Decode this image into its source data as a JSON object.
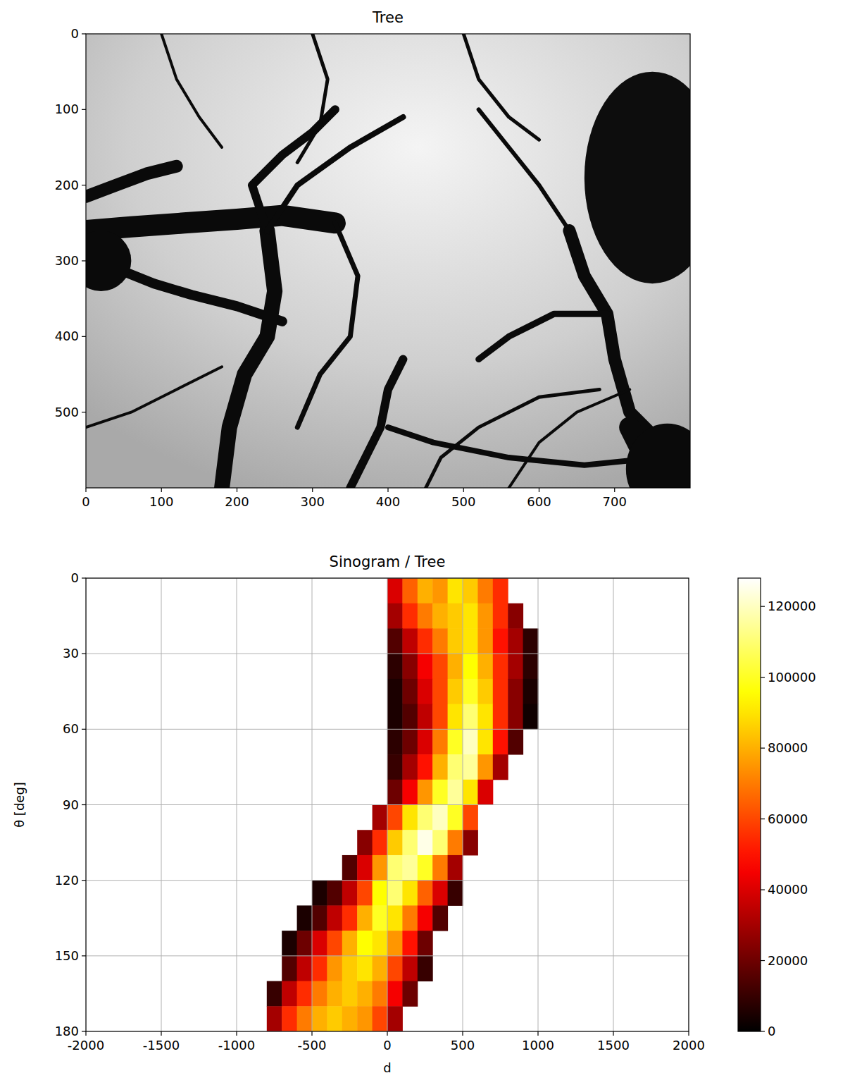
{
  "chart_data": [
    {
      "type": "image",
      "title": "Tree",
      "xlim": [
        0,
        800
      ],
      "xticks": [
        0,
        100,
        200,
        300,
        400,
        500,
        600,
        700
      ],
      "ylim": [
        600,
        0
      ],
      "yticks": [
        0,
        100,
        200,
        300,
        400,
        500
      ]
    },
    {
      "type": "heatmap",
      "title": "Sinogram / Tree",
      "x_label": "d",
      "y_label": "θ [deg]",
      "xlim": [
        -2000,
        2000
      ],
      "xticks": [
        -2000,
        -1500,
        -1000,
        -500,
        0,
        500,
        1000,
        1500,
        2000
      ],
      "ylim": [
        180,
        0
      ],
      "yticks": [
        0,
        30,
        60,
        90,
        120,
        150,
        180
      ],
      "grid": true,
      "theta_bins": [
        0,
        10,
        20,
        30,
        40,
        50,
        60,
        70,
        80,
        90,
        100,
        110,
        120,
        130,
        140,
        150,
        160,
        170,
        180
      ],
      "d_bins": [
        -800,
        -700,
        -600,
        -500,
        -400,
        -300,
        -200,
        -100,
        0,
        100,
        200,
        300,
        400,
        500,
        600,
        700,
        800,
        900,
        1000
      ],
      "cells": [
        [
          null,
          null,
          null,
          null,
          null,
          null,
          null,
          null,
          40000,
          65000,
          80000,
          75000,
          90000,
          85000,
          70000,
          55000,
          null,
          null
        ],
        [
          null,
          null,
          null,
          null,
          null,
          null,
          null,
          null,
          30000,
          55000,
          70000,
          80000,
          85000,
          90000,
          75000,
          55000,
          25000,
          null
        ],
        [
          null,
          null,
          null,
          null,
          null,
          null,
          null,
          null,
          15000,
          35000,
          55000,
          70000,
          85000,
          90000,
          75000,
          50000,
          30000,
          8000
        ],
        [
          null,
          null,
          null,
          null,
          null,
          null,
          null,
          null,
          8000,
          25000,
          45000,
          60000,
          80000,
          95000,
          80000,
          55000,
          30000,
          8000
        ],
        [
          null,
          null,
          null,
          null,
          null,
          null,
          null,
          null,
          5000,
          20000,
          40000,
          60000,
          85000,
          100000,
          85000,
          55000,
          25000,
          5000
        ],
        [
          null,
          null,
          null,
          null,
          null,
          null,
          null,
          null,
          5000,
          15000,
          35000,
          60000,
          90000,
          110000,
          90000,
          55000,
          25000,
          3000
        ],
        [
          null,
          null,
          null,
          null,
          null,
          null,
          null,
          null,
          8000,
          20000,
          40000,
          70000,
          100000,
          120000,
          90000,
          50000,
          15000,
          null
        ],
        [
          null,
          null,
          null,
          null,
          null,
          null,
          null,
          null,
          10000,
          30000,
          50000,
          80000,
          110000,
          115000,
          75000,
          30000,
          null,
          null
        ],
        [
          null,
          null,
          null,
          null,
          null,
          null,
          null,
          null,
          20000,
          45000,
          75000,
          100000,
          115000,
          90000,
          40000,
          null,
          null,
          null
        ],
        [
          null,
          null,
          null,
          null,
          null,
          null,
          null,
          30000,
          60000,
          90000,
          110000,
          120000,
          100000,
          60000,
          null,
          null,
          null,
          null
        ],
        [
          null,
          null,
          null,
          null,
          null,
          null,
          25000,
          55000,
          85000,
          110000,
          125000,
          110000,
          70000,
          25000,
          null,
          null,
          null,
          null
        ],
        [
          null,
          null,
          null,
          null,
          null,
          15000,
          40000,
          75000,
          110000,
          115000,
          100000,
          70000,
          30000,
          null,
          null,
          null,
          null,
          null
        ],
        [
          null,
          null,
          null,
          5000,
          15000,
          35000,
          60000,
          95000,
          110000,
          90000,
          65000,
          40000,
          10000,
          null,
          null,
          null,
          null,
          null
        ],
        [
          null,
          null,
          5000,
          15000,
          35000,
          55000,
          80000,
          100000,
          90000,
          70000,
          45000,
          15000,
          null,
          null,
          null,
          null,
          null,
          null
        ],
        [
          null,
          5000,
          20000,
          40000,
          60000,
          80000,
          95000,
          90000,
          75000,
          50000,
          20000,
          null,
          null,
          null,
          null,
          null,
          null,
          null
        ],
        [
          null,
          15000,
          35000,
          55000,
          75000,
          85000,
          90000,
          80000,
          60000,
          35000,
          10000,
          null,
          null,
          null,
          null,
          null,
          null,
          null
        ],
        [
          10000,
          35000,
          55000,
          70000,
          80000,
          85000,
          80000,
          70000,
          45000,
          20000,
          null,
          null,
          null,
          null,
          null,
          null,
          null,
          null
        ],
        [
          30000,
          55000,
          70000,
          80000,
          85000,
          80000,
          75000,
          60000,
          30000,
          null,
          null,
          null,
          null,
          null,
          null,
          null,
          null,
          null
        ]
      ],
      "colorbar": {
        "range": [
          0,
          128000
        ],
        "ticks": [
          0,
          20000,
          40000,
          60000,
          80000,
          100000,
          120000
        ]
      }
    }
  ]
}
